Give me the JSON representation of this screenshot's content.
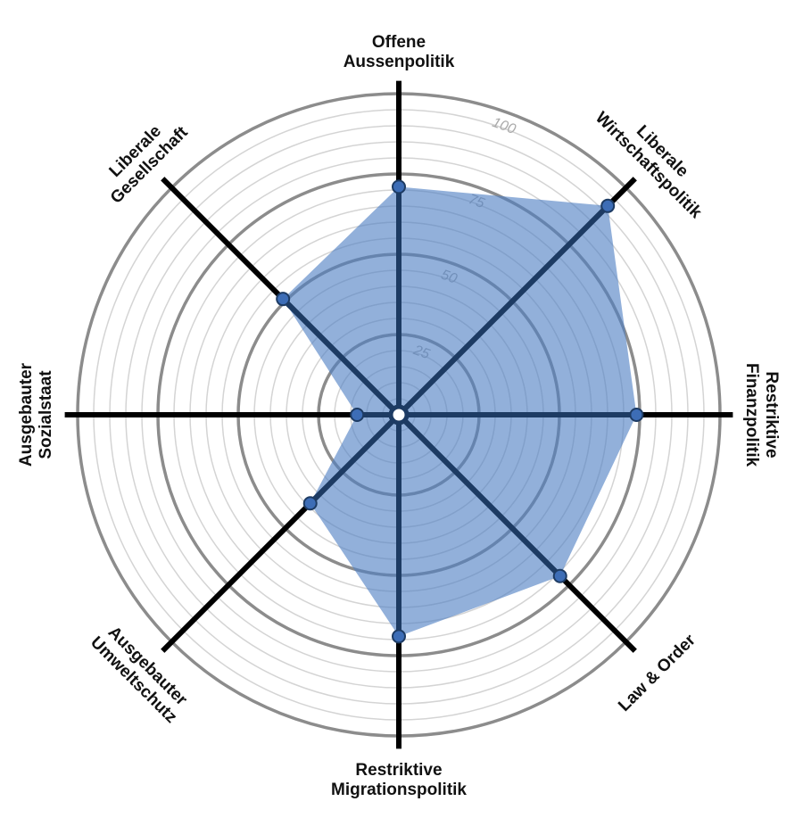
{
  "chart_data": {
    "type": "radar",
    "categories": [
      [
        "Offene",
        "Aussenpolitik"
      ],
      [
        "Liberale",
        "Wirtschaftspolitik"
      ],
      [
        "Restriktive",
        "Finanzpolitik"
      ],
      [
        "Law & Order"
      ],
      [
        "Restriktive",
        "Migrationspolitik"
      ],
      [
        "Ausgebauter",
        "Umweltschutz"
      ],
      [
        "Ausgebauter",
        "Sozialstaat"
      ],
      [
        "Liberale",
        "Gesellschaft"
      ]
    ],
    "values": [
      71,
      92,
      74,
      71,
      69,
      39,
      13,
      51
    ],
    "color": "#4f7fc4",
    "ylim": [
      0,
      100
    ],
    "yticks": [
      25,
      50,
      75,
      100
    ],
    "minor_yticks": [
      5,
      10,
      15,
      20,
      30,
      35,
      40,
      45,
      55,
      60,
      65,
      70,
      80,
      85,
      90,
      95
    ],
    "grid": true
  }
}
